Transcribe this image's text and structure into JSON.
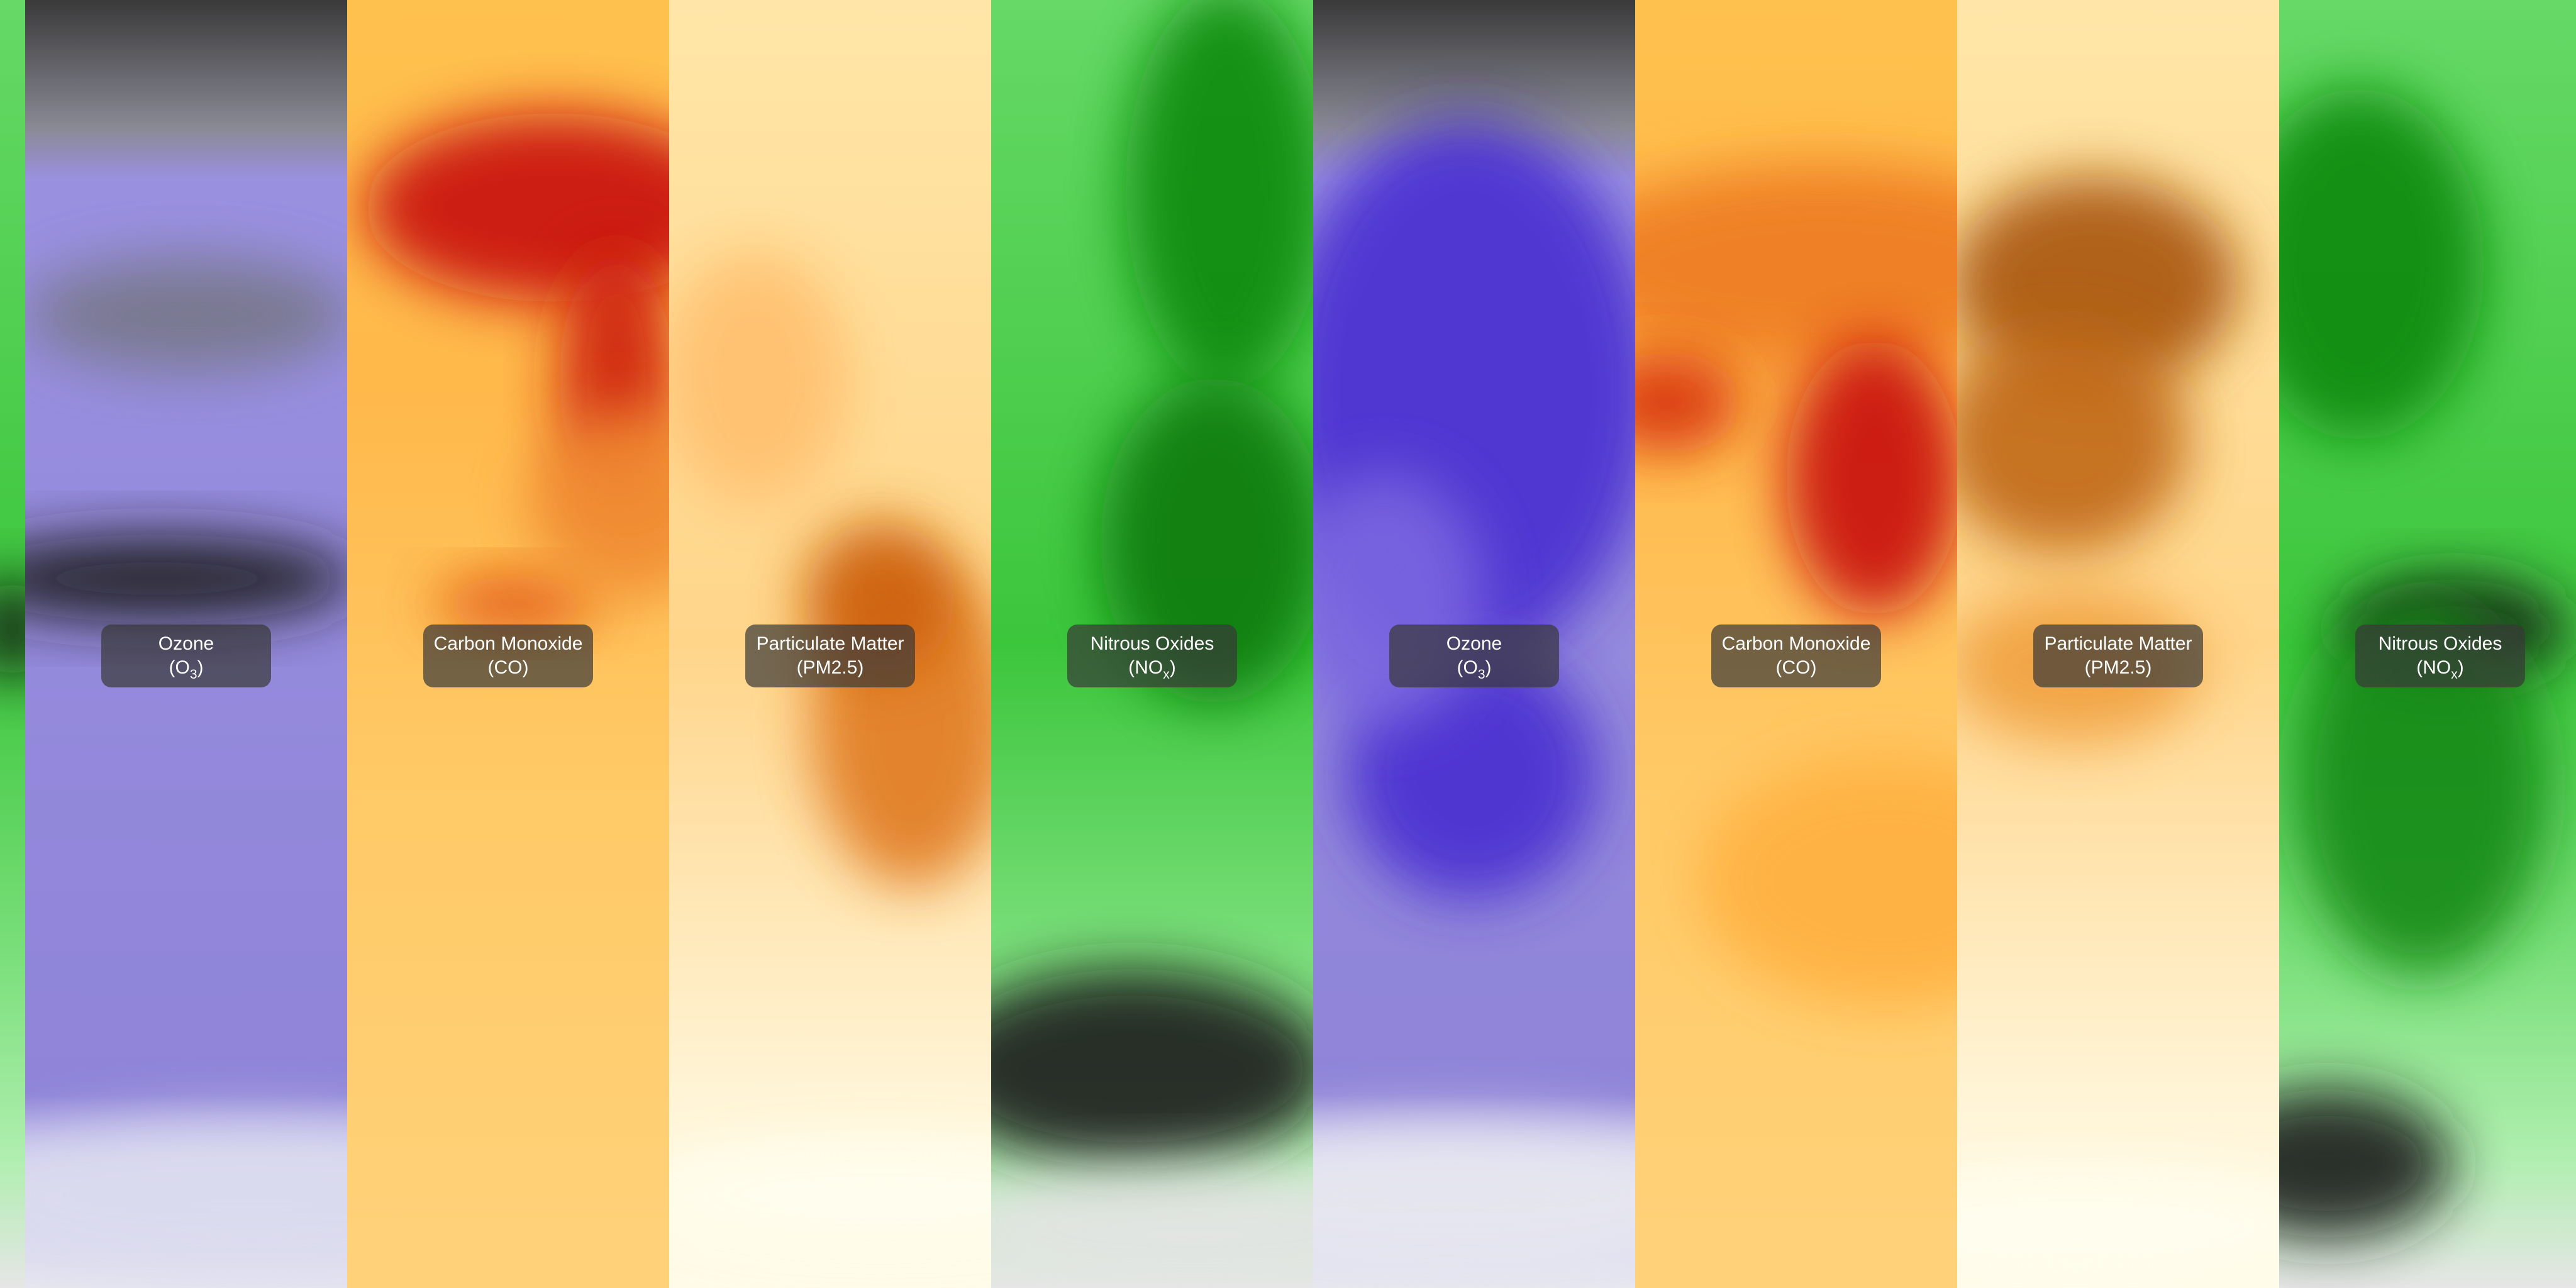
{
  "layers": [
    {
      "name": "Ozone",
      "formula": "(O",
      "formula_subscript": "3",
      "formula_end": ")"
    },
    {
      "name": "Carbon Monoxide",
      "formula": "(CO)"
    },
    {
      "name": "Particulate Matter",
      "formula": "(PM2.5)"
    },
    {
      "name": "Nitrous Oxides",
      "formula": "(NO",
      "formula_subscript": "x",
      "formula_end": ")"
    }
  ]
}
